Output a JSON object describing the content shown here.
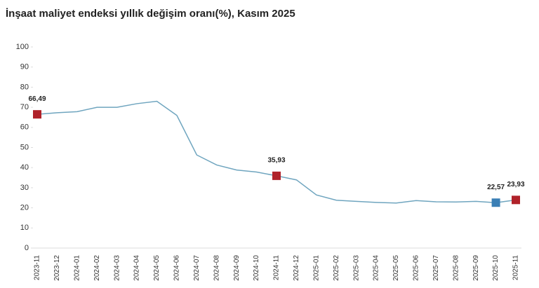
{
  "chart_data": {
    "type": "line",
    "title": "İnşaat maliyet endeksi yıllık değişim oranı(%), Kasım 2025",
    "categories": [
      "2023-11",
      "2023-12",
      "2024-01",
      "2024-02",
      "2024-03",
      "2024-04",
      "2024-05",
      "2024-06",
      "2024-07",
      "2024-08",
      "2024-09",
      "2024-10",
      "2024-11",
      "2024-12",
      "2025-01",
      "2025-02",
      "2025-03",
      "2025-04",
      "2025-05",
      "2025-06",
      "2025-07",
      "2025-08",
      "2025-09",
      "2025-10",
      "2025-11"
    ],
    "values": [
      66.49,
      67.3,
      67.8,
      70.0,
      70.0,
      71.8,
      73.0,
      66.0,
      46.3,
      41.3,
      38.8,
      37.8,
      35.93,
      33.9,
      26.4,
      23.8,
      23.2,
      22.7,
      22.4,
      23.6,
      23.0,
      22.9,
      23.2,
      22.57,
      23.93
    ],
    "value_labels": [
      "66,49",
      null,
      null,
      null,
      null,
      null,
      null,
      null,
      null,
      null,
      null,
      null,
      "35,93",
      null,
      null,
      null,
      null,
      null,
      null,
      null,
      null,
      null,
      null,
      "22,57",
      "23,93"
    ],
    "marker_colors": [
      "#b0222a",
      null,
      null,
      null,
      null,
      null,
      null,
      null,
      null,
      null,
      null,
      null,
      "#b0222a",
      null,
      null,
      null,
      null,
      null,
      null,
      null,
      null,
      null,
      null,
      "#3a7fb5",
      "#b0222a"
    ],
    "color": "#6fa5bf",
    "ylim": [
      0,
      100
    ],
    "yticks": [
      0,
      10,
      20,
      30,
      40,
      50,
      60,
      70,
      80,
      90,
      100
    ]
  }
}
